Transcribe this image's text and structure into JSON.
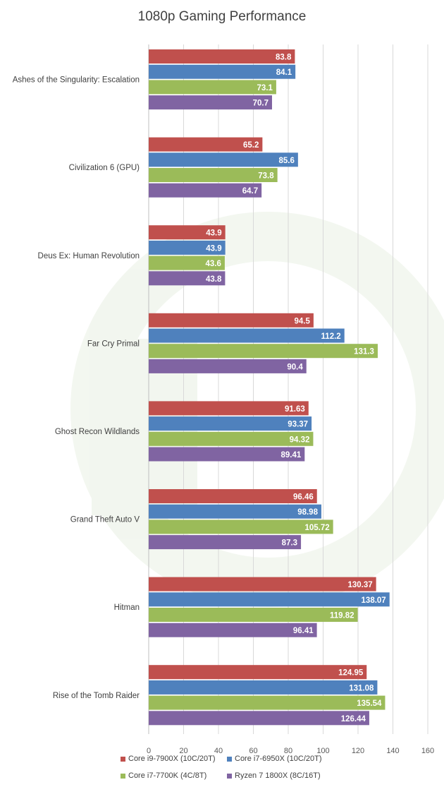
{
  "chart_data": {
    "type": "bar",
    "orientation": "horizontal",
    "title": "1080p Gaming Performance",
    "categories": [
      "Ashes of the Singularity: Escalation",
      "Civilization 6 (GPU)",
      "Deus Ex: Human Revolution",
      "Far Cry Primal",
      "Ghost Recon Wildlands",
      "Grand Theft Auto V",
      "Hitman",
      "Rise of the Tomb Raider"
    ],
    "series": [
      {
        "name": "Core i9-7900X (10C/20T)",
        "color": "#c0504d",
        "values": [
          83.8,
          65.2,
          43.9,
          94.5,
          91.63,
          96.46,
          130.37,
          124.95
        ],
        "labels": [
          "83.8",
          "65.2",
          "43.9",
          "94.5",
          "91.63",
          "96.46",
          "130.37",
          "124.95"
        ]
      },
      {
        "name": "Core i7-6950X (10C/20T)",
        "color": "#4f81bd",
        "values": [
          84.1,
          85.6,
          43.9,
          112.2,
          93.37,
          98.98,
          138.07,
          131.08
        ],
        "labels": [
          "84.1",
          "85.6",
          "43.9",
          "112.2",
          "93.37",
          "98.98",
          "138.07",
          "131.08"
        ]
      },
      {
        "name": "Core i7-7700K (4C/8T)",
        "color": "#9bbb59",
        "values": [
          73.1,
          73.8,
          43.6,
          131.3,
          94.32,
          105.72,
          119.82,
          135.54
        ],
        "labels": [
          "73.1",
          "73.8",
          "43.6",
          "131.3",
          "94.32",
          "105.72",
          "119.82",
          "135.54"
        ]
      },
      {
        "name": "Ryzen 7 1800X (8C/16T)",
        "color": "#8064a2",
        "values": [
          70.7,
          64.7,
          43.8,
          90.4,
          89.41,
          87.3,
          96.41,
          126.44
        ],
        "labels": [
          "70.7",
          "64.7",
          "43.8",
          "90.4",
          "89.41",
          "87.3",
          "96.41",
          "126.44"
        ]
      }
    ],
    "xlim": [
      0,
      160
    ],
    "xticks": [
      "0",
      "20",
      "40",
      "60",
      "80",
      "100",
      "120",
      "140",
      "160"
    ],
    "grid": true,
    "legend_position": "bottom",
    "watermark": "PC PERSPECTIVE"
  }
}
